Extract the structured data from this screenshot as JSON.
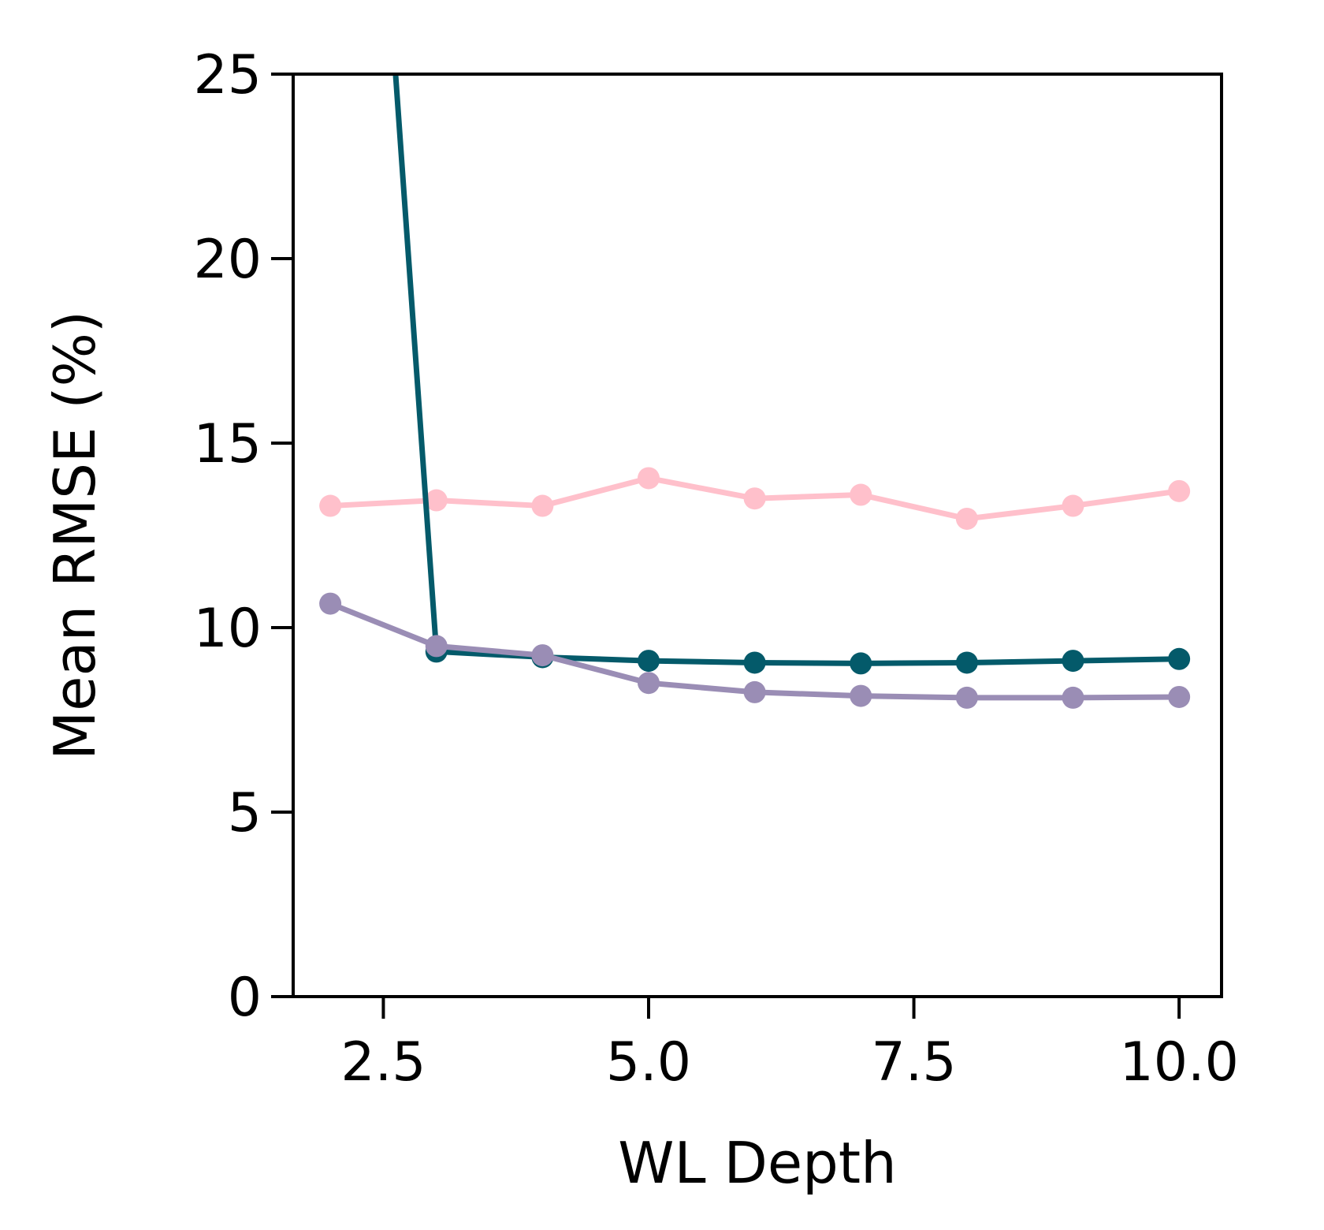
{
  "chart_data": {
    "type": "line",
    "title": "",
    "xlabel": "WL Depth",
    "ylabel": "Mean RMSE (%)",
    "xlim": [
      1.65,
      10.4
    ],
    "ylim": [
      0,
      25
    ],
    "x_ticks": [
      2.5,
      5.0,
      7.5,
      10.0
    ],
    "x_tick_labels": [
      "2.5",
      "5.0",
      "7.5",
      "10.0"
    ],
    "y_ticks": [
      0,
      5,
      10,
      15,
      20,
      25
    ],
    "y_tick_labels": [
      "0",
      "5",
      "10",
      "15",
      "20",
      "25"
    ],
    "grid": false,
    "legend": "none",
    "x": [
      2,
      3,
      4,
      5,
      6,
      7,
      8,
      9,
      10
    ],
    "series": [
      {
        "color": "#FFC0CB",
        "values": [
          13.3,
          13.45,
          13.3,
          14.05,
          13.5,
          13.6,
          12.95,
          13.3,
          13.7
        ]
      },
      {
        "color": "#045A6A",
        "values": [
          50,
          9.35,
          9.2,
          9.1,
          9.05,
          9.03,
          9.05,
          9.1,
          9.15
        ]
      },
      {
        "color": "#9A8DB5",
        "values": [
          10.65,
          9.5,
          9.25,
          8.5,
          8.25,
          8.15,
          8.1,
          8.1,
          8.12
        ]
      }
    ]
  }
}
